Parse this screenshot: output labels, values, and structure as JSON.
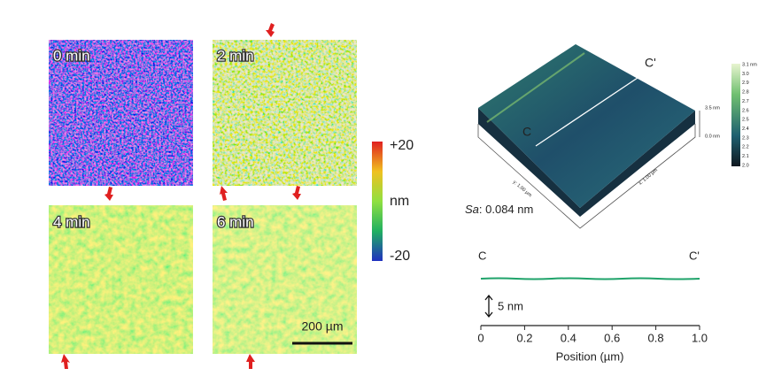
{
  "maps": [
    {
      "label": "0 min"
    },
    {
      "label": "2 min"
    },
    {
      "label": "4 min"
    },
    {
      "label": "6 min"
    }
  ],
  "colorbar": {
    "top": "+20",
    "unit": "nm",
    "bottom": "-20"
  },
  "scale_bar": "200 µm",
  "afm": {
    "start": "C",
    "end": "C'",
    "sa_label": "Sa",
    "sa_value": ": 0.084 nm",
    "height_top": "3.5 nm",
    "height_bottom": "0.0 nm",
    "y_axis": "y: 1.00 µm",
    "x_axis": "x: 1.00 µm",
    "colorbar_labels": [
      "3.1 nm",
      "3.0",
      "2.9",
      "2.8",
      "2.7",
      "2.6",
      "2.5",
      "2.4",
      "2.3",
      "2.2",
      "2.1",
      "2.0"
    ]
  },
  "profile": {
    "start": "C",
    "end": "C'",
    "scale": "5 nm",
    "xlabel": "Position (µm)",
    "xlim": [
      0,
      1
    ],
    "xticks": [
      0,
      0.2,
      0.4,
      0.6,
      0.8,
      {
        "value": 1,
        "label": "1.0"
      }
    ]
  }
}
